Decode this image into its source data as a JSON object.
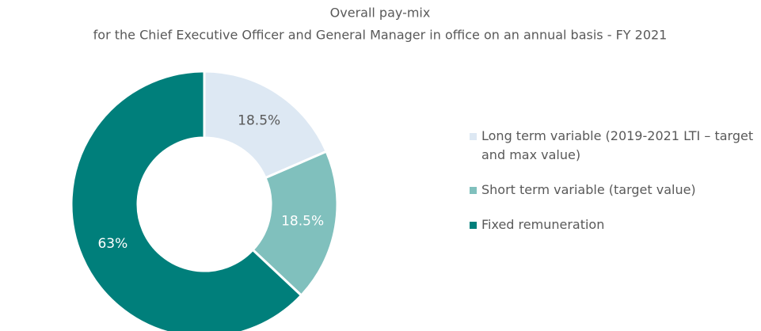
{
  "chart_data": {
    "type": "donut",
    "title": "Overall pay-mix",
    "subtitle": "for the Chief Executive Officer and General Manager in office on an annual basis - FY 2021",
    "categories": [
      "Long term variable (2019-2021 LTI – target and max value)",
      "Short term variable (target value)",
      "Fixed remuneration"
    ],
    "values": [
      18.5,
      18.5,
      63
    ],
    "value_labels": [
      "18.5%",
      "18.5%",
      "63%"
    ],
    "colors": [
      "#dde8f3",
      "#80c0bd",
      "#007f7b"
    ],
    "legend": "right"
  }
}
